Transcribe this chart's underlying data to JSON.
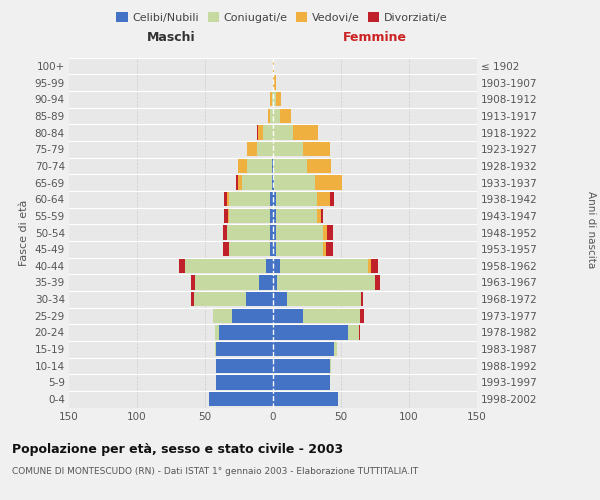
{
  "age_groups": [
    "0-4",
    "5-9",
    "10-14",
    "15-19",
    "20-24",
    "25-29",
    "30-34",
    "35-39",
    "40-44",
    "45-49",
    "50-54",
    "55-59",
    "60-64",
    "65-69",
    "70-74",
    "75-79",
    "80-84",
    "85-89",
    "90-94",
    "95-99",
    "100+"
  ],
  "birth_years": [
    "1998-2002",
    "1993-1997",
    "1988-1992",
    "1983-1987",
    "1978-1982",
    "1973-1977",
    "1968-1972",
    "1963-1967",
    "1958-1962",
    "1953-1957",
    "1948-1952",
    "1943-1947",
    "1938-1942",
    "1933-1937",
    "1928-1932",
    "1923-1927",
    "1918-1922",
    "1913-1917",
    "1908-1912",
    "1903-1907",
    "≤ 1902"
  ],
  "male_celibe": [
    47,
    42,
    42,
    42,
    40,
    30,
    20,
    10,
    5,
    2,
    2,
    2,
    2,
    1,
    1,
    0,
    0,
    0,
    0,
    0,
    0
  ],
  "male_coniugato": [
    0,
    0,
    0,
    1,
    3,
    14,
    38,
    47,
    60,
    30,
    32,
    30,
    30,
    22,
    18,
    12,
    7,
    2,
    1,
    0,
    0
  ],
  "male_vedovo": [
    0,
    0,
    0,
    0,
    0,
    0,
    0,
    0,
    0,
    0,
    0,
    1,
    2,
    3,
    7,
    7,
    4,
    2,
    1,
    0,
    0
  ],
  "male_divorziato": [
    0,
    0,
    0,
    0,
    0,
    0,
    2,
    3,
    4,
    5,
    3,
    3,
    2,
    1,
    0,
    0,
    1,
    0,
    0,
    0,
    0
  ],
  "female_celibe": [
    48,
    42,
    42,
    45,
    55,
    22,
    10,
    3,
    5,
    2,
    2,
    2,
    2,
    1,
    0,
    0,
    0,
    0,
    0,
    0,
    0
  ],
  "female_coniugato": [
    0,
    0,
    1,
    2,
    8,
    42,
    55,
    72,
    65,
    35,
    35,
    30,
    30,
    30,
    25,
    22,
    15,
    5,
    2,
    0,
    0
  ],
  "female_vedovo": [
    0,
    0,
    0,
    0,
    0,
    0,
    0,
    0,
    2,
    2,
    3,
    3,
    10,
    20,
    18,
    20,
    18,
    8,
    4,
    2,
    1
  ],
  "female_divorziato": [
    0,
    0,
    0,
    0,
    1,
    3,
    1,
    4,
    5,
    5,
    4,
    2,
    3,
    0,
    0,
    0,
    0,
    0,
    0,
    0,
    0
  ],
  "colors": {
    "celibe": "#4472C4",
    "coniugato": "#C5D9A0",
    "vedovo": "#F0B040",
    "divorziato": "#C0202A"
  },
  "title": "Popolazione per età, sesso e stato civile - 2003",
  "subtitle": "COMUNE DI MONTESCUDO (RN) - Dati ISTAT 1° gennaio 2003 - Elaborazione TUTTITALIA.IT",
  "xlabel_left": "Maschi",
  "xlabel_right": "Femmine",
  "ylabel_left": "Fasce di età",
  "ylabel_right": "Anni di nascita",
  "xlim": 150,
  "bg_color": "#f0f0f0",
  "plot_bg": "#e8e8e8",
  "grid_color": "#cccccc"
}
